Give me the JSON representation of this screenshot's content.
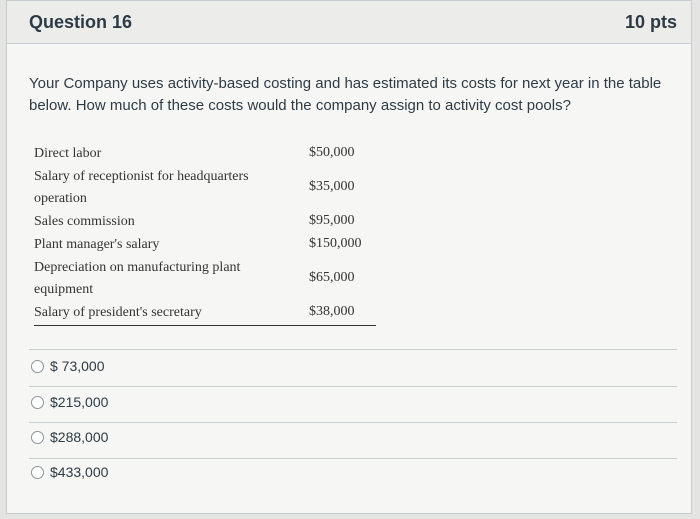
{
  "question": {
    "title": "Question 16",
    "points": "10 pts",
    "text": "Your Company uses activity-based costing and has estimated its costs for next year in the table below. How much of these costs would the company assign to activity cost pools?"
  },
  "cost_table": {
    "rows": [
      {
        "label": "Direct labor",
        "value": "$50,000"
      },
      {
        "label": "Salary of receptionist for headquarters operation",
        "value": "$35,000"
      },
      {
        "label": "Sales commission",
        "value": "$95,000"
      },
      {
        "label": "Plant manager's salary",
        "value": "$150,000"
      },
      {
        "label": "Depreciation on manufacturing plant equipment",
        "value": "$65,000"
      },
      {
        "label": "Salary of president's secretary",
        "value": "$38,000"
      }
    ]
  },
  "answers": [
    {
      "label": "$ 73,000"
    },
    {
      "label": "$215,000"
    },
    {
      "label": "$288,000"
    },
    {
      "label": "$433,000"
    }
  ]
}
